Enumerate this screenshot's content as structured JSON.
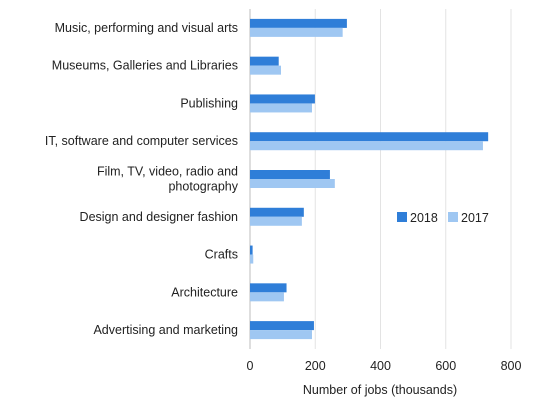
{
  "chart_data": {
    "type": "bar",
    "orientation": "horizontal",
    "title": "",
    "xlabel": "Number of jobs (thousands)",
    "ylabel": "",
    "xlim": [
      0,
      800
    ],
    "xticks": [
      0,
      200,
      400,
      600,
      800
    ],
    "grid": true,
    "legend_position": "right",
    "categories": [
      [
        "Music, performing and visual arts"
      ],
      [
        "Museums, Galleries and Libraries"
      ],
      [
        "Publishing"
      ],
      [
        "IT, software and computer services"
      ],
      [
        "Film, TV, video, radio and",
        "photography"
      ],
      [
        "Design and designer fashion"
      ],
      [
        "Crafts"
      ],
      [
        "Architecture"
      ],
      [
        "Advertising and marketing"
      ]
    ],
    "series": [
      {
        "name": "2018",
        "color": "#2f7ed8",
        "values": [
          297,
          88,
          199,
          730,
          245,
          165,
          8,
          112,
          196
        ]
      },
      {
        "name": "2017",
        "color": "#9fc7f2",
        "values": [
          284,
          95,
          190,
          714,
          260,
          159,
          10,
          104,
          190
        ]
      }
    ]
  }
}
